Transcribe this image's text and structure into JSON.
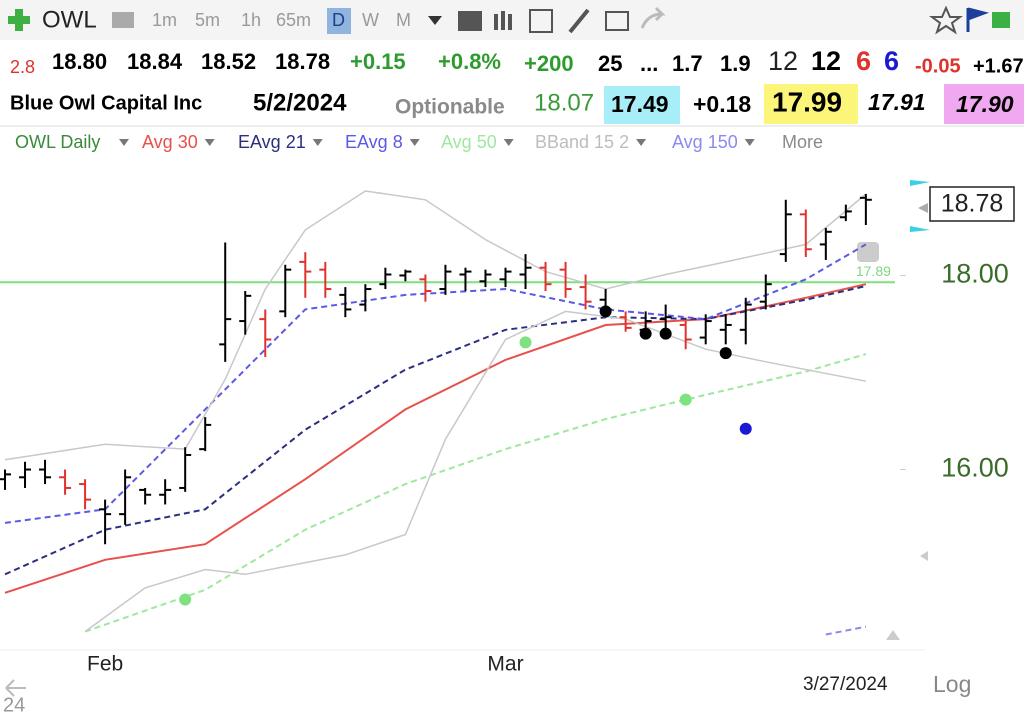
{
  "toolbar": {
    "symbol": "OWL",
    "intervals": [
      "1m",
      "5m",
      "1h",
      "65m",
      "D",
      "W",
      "M"
    ]
  },
  "quote": {
    "row1": [
      "2.8",
      "18.80",
      "18.84",
      "18.52",
      "18.78",
      "+0.15",
      "+0.8%",
      "+200",
      "25",
      "...",
      "1.7",
      "1.9",
      "12",
      "12",
      "6",
      "6",
      "-0.05",
      "+1.67"
    ],
    "row2": [
      "Blue Owl Capital Inc",
      "5/2/2024",
      "Optionable",
      "18.07",
      "17.49",
      "+0.18",
      "17.99",
      "17.91",
      "17.90"
    ]
  },
  "legend_more": "More",
  "footer": {
    "date": "3/27/2024",
    "scale": "Log",
    "corner": "24"
  },
  "chart_data": {
    "type": "ohlc",
    "title": "OWL Daily",
    "categories": [
      null,
      null,
      null,
      null,
      null,
      "Feb",
      null,
      null,
      null,
      null,
      null,
      null,
      null,
      null,
      null,
      null,
      null,
      null,
      null,
      null,
      null,
      null,
      null,
      null,
      null,
      "Mar",
      null,
      null,
      null,
      null,
      null,
      null,
      null,
      null,
      null,
      null,
      null,
      null,
      null,
      null,
      null,
      null,
      null,
      null
    ],
    "open": [
      15.9,
      15.92,
      16.0,
      15.92,
      15.85,
      15.59,
      15.54,
      15.79,
      15.74,
      15.81,
      16.21,
      17.29,
      17.53,
      17.55,
      17.63,
      18.14,
      18.06,
      17.8,
      17.7,
      17.91,
      18.0,
      17.96,
      17.86,
      18.01,
      17.94,
      17.96,
      18.01,
      18.08,
      18.06,
      17.88,
      17.75,
      17.57,
      17.44,
      17.55,
      17.49,
      17.36,
      17.44,
      17.44,
      17.73,
      18.22,
      18.63,
      18.32,
      18.6,
      18.8
    ],
    "high": [
      16.0,
      16.08,
      16.1,
      16.0,
      15.9,
      15.69,
      16.0,
      15.81,
      15.9,
      16.23,
      16.54,
      18.34,
      17.84,
      17.65,
      18.11,
      18.24,
      18.14,
      17.88,
      17.91,
      18.08,
      18.06,
      18.01,
      18.11,
      18.08,
      18.06,
      18.08,
      18.22,
      18.14,
      18.14,
      18.01,
      17.86,
      17.63,
      17.63,
      17.7,
      17.53,
      17.6,
      17.6,
      17.77,
      18.01,
      18.78,
      18.68,
      18.49,
      18.73,
      18.84
    ],
    "low": [
      15.79,
      15.81,
      15.85,
      15.74,
      15.59,
      15.23,
      15.43,
      15.64,
      15.64,
      15.77,
      16.19,
      17.11,
      17.39,
      17.16,
      17.57,
      17.77,
      17.77,
      17.57,
      17.63,
      17.86,
      17.94,
      17.73,
      17.8,
      17.84,
      17.88,
      17.88,
      17.86,
      17.84,
      17.77,
      17.65,
      17.57,
      17.42,
      17.36,
      17.34,
      17.24,
      17.29,
      17.29,
      17.29,
      17.65,
      18.14,
      18.19,
      18.16,
      18.56,
      18.52
    ],
    "close": [
      15.95,
      16.0,
      15.92,
      15.81,
      15.69,
      15.54,
      15.92,
      15.74,
      15.79,
      16.15,
      16.46,
      17.55,
      17.79,
      17.34,
      18.06,
      18.04,
      17.86,
      17.65,
      17.86,
      18.01,
      18.04,
      17.84,
      18.04,
      18.04,
      18.01,
      18.04,
      18.08,
      17.91,
      17.86,
      17.73,
      17.65,
      17.46,
      17.53,
      17.57,
      17.34,
      17.53,
      17.49,
      17.7,
      17.91,
      18.63,
      18.27,
      18.45,
      18.66,
      18.78
    ],
    "colors": [
      "#000000",
      "#000000",
      "#000000",
      "#e0322c",
      "#e0322c",
      "#000000",
      "#000000",
      "#000000",
      "#000000",
      "#000000",
      "#000000",
      "#000000",
      "#000000",
      "#e0322c",
      "#000000",
      "#e0322c",
      "#e0322c",
      "#000000",
      "#000000",
      "#000000",
      "#000000",
      "#e0322c",
      "#000000",
      "#000000",
      "#000000",
      "#000000",
      "#000000",
      "#e0322c",
      "#e0322c",
      "#e0322c",
      "#000000",
      "#e0322c",
      "#000000",
      "#000000",
      "#e0322c",
      "#000000",
      "#000000",
      "#000000",
      "#000000",
      "#000000",
      "#e0322c",
      "#000000",
      "#000000",
      "#000000"
    ],
    "series": [
      {
        "name": "Avg 30",
        "color": "#e8504a",
        "dash": false,
        "x": [
          0,
          5,
          10,
          15,
          20,
          25,
          30,
          35,
          40,
          43
        ],
        "values": [
          14.73,
          15.07,
          15.23,
          15.9,
          16.62,
          17.13,
          17.49,
          17.55,
          17.77,
          17.91
        ]
      },
      {
        "name": "EAvg 21",
        "color": "#2a2f7f",
        "dash": true,
        "x": [
          0,
          5,
          10,
          15,
          20,
          25,
          30,
          35,
          40,
          43
        ],
        "values": [
          14.92,
          15.38,
          15.59,
          16.41,
          17.03,
          17.44,
          17.57,
          17.55,
          17.75,
          17.89
        ]
      },
      {
        "name": "EAvg 8",
        "color": "#5a5ae6",
        "dash": true,
        "x": [
          0,
          5,
          10,
          15,
          20,
          25,
          30,
          35,
          40,
          43
        ],
        "values": [
          15.45,
          15.59,
          16.62,
          17.65,
          17.8,
          17.86,
          17.65,
          17.55,
          17.96,
          18.32
        ]
      },
      {
        "name": "Avg 50",
        "color": "#9ee89e",
        "dash": true,
        "x": [
          4,
          10,
          15,
          20,
          25,
          30,
          35,
          40,
          43
        ],
        "values": [
          14.33,
          14.76,
          15.38,
          15.85,
          16.21,
          16.52,
          16.77,
          17.01,
          17.19
        ]
      },
      {
        "name": "BBand 15 2",
        "color": "#c8c8c8",
        "dash": false,
        "upper": {
          "x": [
            0,
            5,
            9,
            11,
            13,
            15,
            18,
            21,
            24,
            27,
            30,
            33,
            36,
            40,
            43
          ],
          "values": [
            16.1,
            16.26,
            16.21,
            16.93,
            17.86,
            18.47,
            18.87,
            18.78,
            18.37,
            18.04,
            17.86,
            18.01,
            18.14,
            18.32,
            18.84
          ]
        },
        "lower": {
          "x": [
            4,
            7,
            10,
            12,
            17,
            20,
            22,
            25,
            28,
            31,
            35,
            38,
            43
          ],
          "values": [
            14.33,
            14.78,
            14.97,
            14.92,
            15.12,
            15.33,
            16.31,
            17.34,
            17.63,
            17.55,
            17.24,
            17.11,
            16.91
          ]
        }
      },
      {
        "name": "Avg 150",
        "color": "#8a8aee",
        "dash": true,
        "x": [
          41,
          43
        ],
        "values": [
          14.3,
          14.38
        ]
      }
    ],
    "signals": [
      {
        "color": "#7ee27e",
        "x": [
          9,
          26,
          34
        ],
        "values": [
          14.66,
          17.31,
          16.72
        ]
      },
      {
        "color": "#000000",
        "x": [
          30,
          32,
          33,
          36
        ],
        "values": [
          17.63,
          17.4,
          17.4,
          17.2
        ]
      },
      {
        "color": "#1a1ad6",
        "x": [
          37
        ],
        "values": [
          16.42
        ]
      }
    ],
    "hline": {
      "value": 17.93,
      "color": "#7fe07f"
    },
    "annotation": "17.89",
    "ylim": [
      14.14,
      19.19
    ],
    "yticks": [
      {
        "value": 16,
        "label": "16.00"
      },
      {
        "value": 18,
        "label": "18.00"
      }
    ],
    "grid": false
  }
}
